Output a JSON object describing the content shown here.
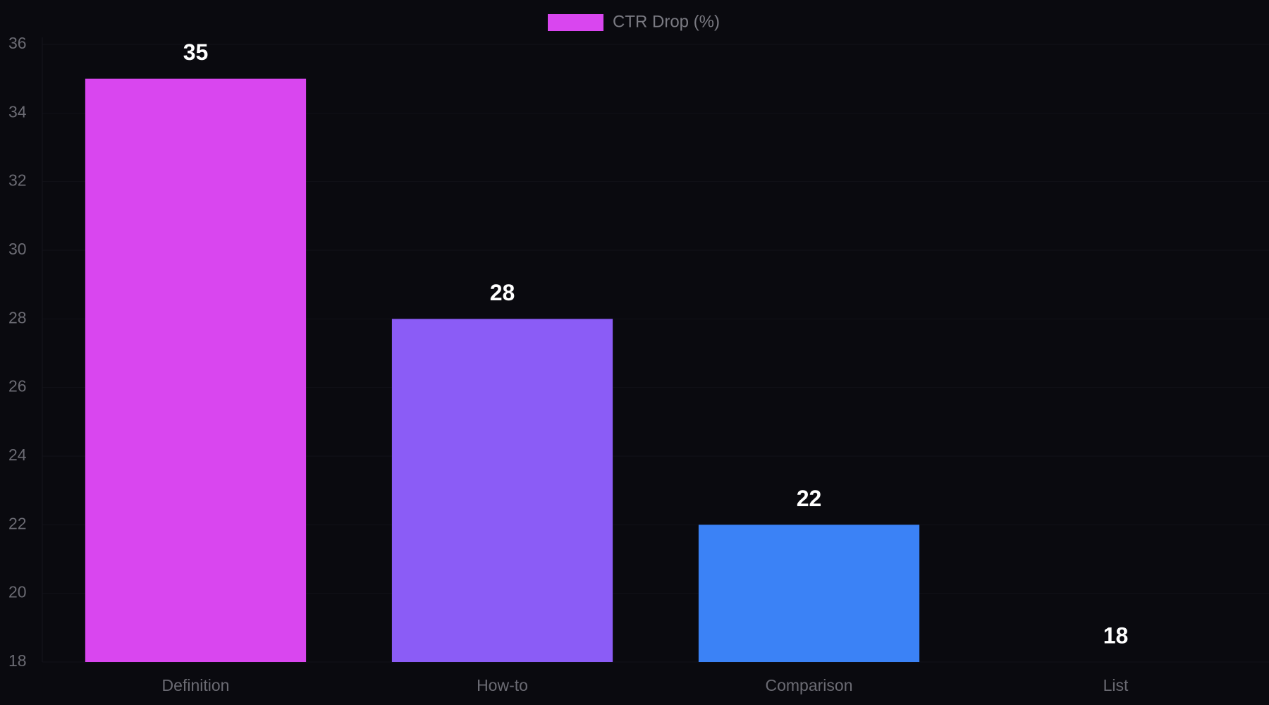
{
  "chart_data": {
    "type": "bar",
    "categories": [
      "Definition",
      "How-to",
      "Comparison",
      "List"
    ],
    "series": [
      {
        "name": "CTR Drop (%)",
        "color": "#d946ef",
        "values": [
          35,
          28,
          22,
          18
        ]
      }
    ],
    "colors": [
      "#d946ef",
      "#8b5cf6",
      "#3b82f6",
      "#06b6d4"
    ],
    "ylim": [
      18,
      36
    ],
    "yticks": [
      18,
      20,
      22,
      24,
      26,
      28,
      30,
      32,
      34,
      36
    ],
    "grid": true,
    "legend": "top"
  }
}
